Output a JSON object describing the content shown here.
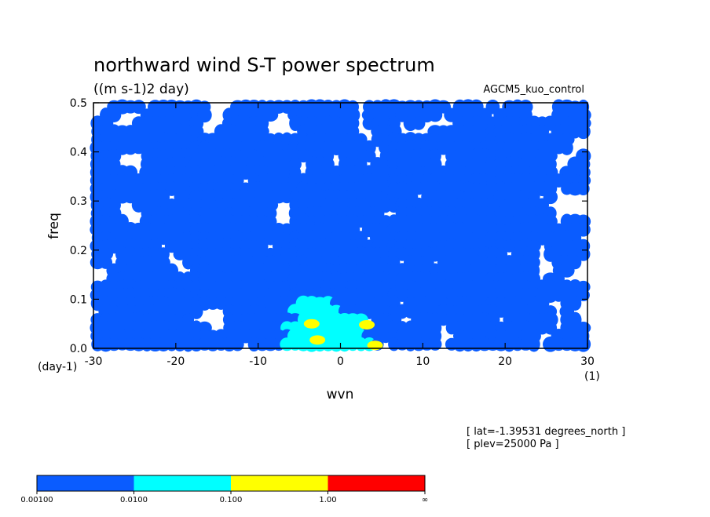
{
  "chart_data": {
    "type": "heatmap",
    "title": "northward wind S-T power spectrum",
    "units_label": "((m s-1)2 day)",
    "model_label": "AGCM5_kuo_control",
    "xlabel": "wvn",
    "ylabel": "freq",
    "x_unit_label": "(1)",
    "y_unit_label": "(day-1)",
    "xlim": [
      -30,
      30
    ],
    "ylim": [
      0,
      0.5
    ],
    "x_ticks": [
      "-30",
      "-20",
      "-10",
      "0",
      "10",
      "20",
      "30"
    ],
    "y_ticks": [
      "0.0",
      "0.1",
      "0.2",
      "0.3",
      "0.4",
      "0.5"
    ],
    "info_lines": [
      "[ lat=-1.39531 degrees_north ]",
      "[ plev=25000 Pa ]"
    ],
    "contour_levels": [
      "0.00100",
      "0.0100",
      "0.100",
      "1.00",
      "∞"
    ],
    "level_colors": [
      "#ffffff",
      "#0a5cff",
      "#00ffff",
      "#ffff00",
      "#ff0000"
    ],
    "grid": false,
    "note": "",
    "yellow_cores": [
      {
        "wvn": -3.5,
        "freq": 0.05
      },
      {
        "wvn": -2.8,
        "freq": 0.017
      },
      {
        "wvn": 3.2,
        "freq": 0.048
      },
      {
        "wvn": 4.2,
        "freq": 0.006
      }
    ]
  }
}
